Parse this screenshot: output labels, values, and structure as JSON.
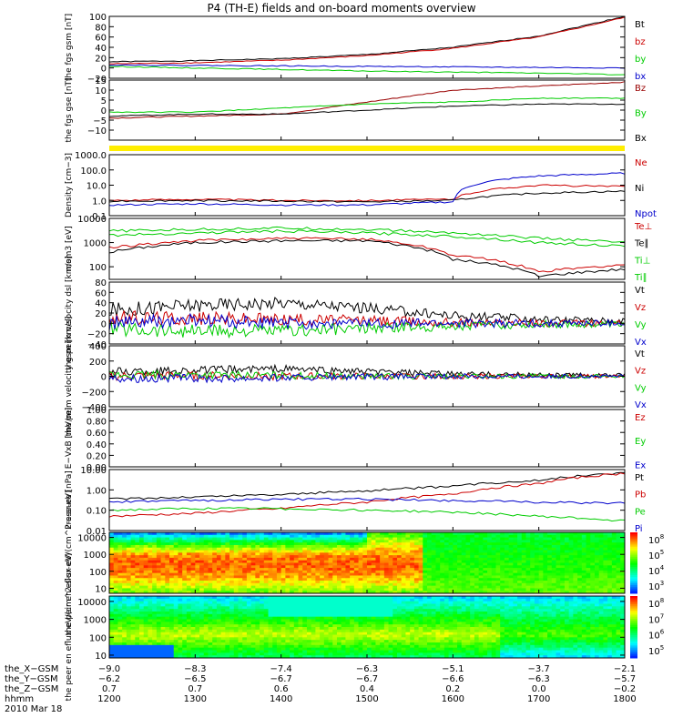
{
  "title": "P4 (TH-E) fields and on-board moments overview",
  "date": "2010 Mar 18",
  "chart_data": [
    {
      "type": "line",
      "ylabel": "the fgs gsm [nT]",
      "ylim": [
        -20,
        100
      ],
      "yticks": [
        -20,
        0,
        20,
        40,
        60,
        80,
        100
      ],
      "ytick_labels": [
        "−20",
        "0",
        "20",
        "40",
        "60",
        "80",
        "100"
      ],
      "legend": [
        "Bt",
        "bz",
        "by",
        "bx"
      ],
      "colors": [
        "#000000",
        "#cc0000",
        "#00cc00",
        "#0000cc"
      ],
      "x": [
        1200,
        1300,
        1400,
        1500,
        1600,
        1700,
        1800
      ],
      "series": [
        {
          "name": "Bt",
          "values": [
            12,
            14,
            18,
            26,
            40,
            62,
            100
          ]
        },
        {
          "name": "bz",
          "values": [
            8,
            10,
            15,
            24,
            38,
            60,
            98
          ]
        },
        {
          "name": "by",
          "values": [
            3,
            0,
            -3,
            -6,
            -8,
            -10,
            -13
          ]
        },
        {
          "name": "bx",
          "values": [
            6,
            5,
            4,
            3,
            2,
            1,
            0
          ]
        }
      ]
    },
    {
      "type": "line",
      "ylabel": "the fgs gse [nT]",
      "ylim": [
        -15,
        15
      ],
      "yticks": [
        -10,
        -5,
        0,
        5,
        10,
        15
      ],
      "ytick_labels": [
        "−10",
        "−5",
        "0",
        "5",
        "10",
        "15"
      ],
      "legend": [
        "Bz",
        "By",
        "Bx"
      ],
      "colors": [
        "#990000",
        "#00cc00",
        "#000000"
      ],
      "x": [
        1200,
        1300,
        1400,
        1500,
        1600,
        1700,
        1800
      ],
      "series": [
        {
          "name": "Bz",
          "values": [
            -4,
            -3,
            -2,
            4,
            10,
            12,
            14
          ]
        },
        {
          "name": "By",
          "values": [
            -1,
            -1,
            1,
            3,
            4,
            6,
            6
          ]
        },
        {
          "name": "Bx",
          "values": [
            -3,
            -2,
            -2,
            0,
            2,
            3,
            3
          ]
        }
      ]
    },
    {
      "type": "line",
      "ylabel": "Density [cm−3]",
      "yscale": "log",
      "ylim": [
        0.1,
        1000
      ],
      "yticks": [
        0.1,
        1,
        10,
        100,
        1000
      ],
      "ytick_labels": [
        "0.1",
        "1.0",
        "10.0",
        "100.0",
        "1000.0"
      ],
      "legend": [
        "Ne",
        "Ni",
        "Npot"
      ],
      "colors": [
        "#cc0000",
        "#000000",
        "#0000cc"
      ],
      "x": [
        1200,
        1300,
        1400,
        1500,
        1600,
        1700,
        1800
      ],
      "series": [
        {
          "name": "Ne",
          "values": [
            1.0,
            1.2,
            1.0,
            1.0,
            1.2,
            10,
            8
          ]
        },
        {
          "name": "Ni",
          "values": [
            0.9,
            1.0,
            0.9,
            0.8,
            1.0,
            3,
            4
          ]
        },
        {
          "name": "Npot",
          "values": [
            0.5,
            0.6,
            0.5,
            0.5,
            0.8,
            40,
            60
          ]
        }
      ]
    },
    {
      "type": "line",
      "ylabel": "mom3 [eV]",
      "yscale": "log",
      "ylim": [
        30,
        10000
      ],
      "yticks": [
        100,
        1000,
        10000
      ],
      "ytick_labels": [
        "100",
        "1000",
        "10000"
      ],
      "legend": [
        "Te⊥",
        "Te∥",
        "Ti⊥",
        "Ti∥"
      ],
      "colors": [
        "#cc0000",
        "#000000",
        "#00cc00",
        "#00cc00"
      ],
      "x": [
        1200,
        1300,
        1400,
        1500,
        1600,
        1700,
        1800
      ],
      "series": [
        {
          "name": "Te⊥",
          "values": [
            600,
            1200,
            1500,
            1400,
            300,
            60,
            120
          ]
        },
        {
          "name": "Te∥",
          "values": [
            400,
            1000,
            1200,
            1200,
            200,
            40,
            80
          ]
        },
        {
          "name": "Ti⊥",
          "values": [
            3000,
            3500,
            4000,
            3500,
            2500,
            1500,
            1000
          ]
        },
        {
          "name": "Ti∥",
          "values": [
            2000,
            2500,
            3000,
            2500,
            1800,
            1000,
            700
          ]
        }
      ]
    },
    {
      "type": "line",
      "ylabel": "the peim velocity dsl [km/s]",
      "ylim": [
        -40,
        80
      ],
      "yticks": [
        -40,
        -20,
        0,
        20,
        40,
        60,
        80
      ],
      "ytick_labels": [
        "−40",
        "−20",
        "0",
        "20",
        "40",
        "60",
        "80"
      ],
      "legend": [
        "Vt",
        "Vz",
        "Vy",
        "Vx"
      ],
      "colors": [
        "#000000",
        "#cc0000",
        "#00cc00",
        "#0000cc"
      ],
      "x": [
        1200,
        1300,
        1400,
        1500,
        1600,
        1700,
        1800
      ],
      "series": [
        {
          "name": "Vt",
          "values": [
            25,
            35,
            40,
            30,
            15,
            8,
            5
          ]
        },
        {
          "name": "Vz",
          "values": [
            10,
            10,
            8,
            5,
            2,
            0,
            0
          ]
        },
        {
          "name": "Vy",
          "values": [
            -10,
            -15,
            -15,
            -10,
            -5,
            -2,
            -2
          ]
        },
        {
          "name": "Vx",
          "values": [
            0,
            5,
            0,
            0,
            0,
            0,
            0
          ]
        }
      ]
    },
    {
      "type": "line",
      "ylabel": "the peim velocity gsm [km/s]",
      "ylim": [
        -400,
        400
      ],
      "yticks": [
        -400,
        -200,
        0,
        200,
        400
      ],
      "ytick_labels": [
        "−400",
        "−200",
        "0",
        "200",
        "400"
      ],
      "legend": [
        "Vt",
        "Vz",
        "Vy",
        "Vx"
      ],
      "colors": [
        "#000000",
        "#cc0000",
        "#00cc00",
        "#0000cc"
      ],
      "x": [
        1200,
        1300,
        1400,
        1500,
        1600,
        1700,
        1800
      ],
      "series": [
        {
          "name": "Vt",
          "values": [
            60,
            80,
            100,
            60,
            30,
            20,
            15
          ]
        },
        {
          "name": "Vz",
          "values": [
            0,
            10,
            0,
            0,
            0,
            0,
            0
          ]
        },
        {
          "name": "Vy",
          "values": [
            10,
            20,
            10,
            0,
            0,
            0,
            0
          ]
        },
        {
          "name": "Vx",
          "values": [
            -20,
            -30,
            -20,
            -10,
            0,
            0,
            0
          ]
        }
      ]
    },
    {
      "type": "line",
      "ylabel": "E−VxB [mV/m]",
      "ylim": [
        0,
        1
      ],
      "yticks": [
        0,
        0.2,
        0.4,
        0.6,
        0.8,
        1.0
      ],
      "ytick_labels": [
        "0.00",
        "0.20",
        "0.40",
        "0.60",
        "0.80",
        "1.00"
      ],
      "legend": [
        "Ez",
        "Ey",
        "Ex"
      ],
      "colors": [
        "#cc0000",
        "#00cc00",
        "#0000cc"
      ],
      "x": [],
      "series": []
    },
    {
      "type": "line",
      "ylabel": "Pressure [nPa]",
      "yscale": "log",
      "ylim": [
        0.01,
        10
      ],
      "yticks": [
        0.01,
        0.1,
        1,
        10
      ],
      "ytick_labels": [
        "0.01",
        "0.10",
        "1.00",
        "10.00"
      ],
      "legend": [
        "Pt",
        "Pb",
        "Pe",
        "Pi"
      ],
      "colors": [
        "#000000",
        "#cc0000",
        "#00cc00",
        "#0000cc"
      ],
      "x": [
        1200,
        1300,
        1400,
        1500,
        1600,
        1700,
        1800
      ],
      "series": [
        {
          "name": "Pt",
          "values": [
            0.35,
            0.45,
            0.6,
            0.9,
            1.5,
            3,
            7
          ]
        },
        {
          "name": "Pb",
          "values": [
            0.05,
            0.07,
            0.12,
            0.25,
            0.6,
            2,
            6.5
          ]
        },
        {
          "name": "Pe",
          "values": [
            0.1,
            0.12,
            0.12,
            0.1,
            0.08,
            0.05,
            0.03
          ]
        },
        {
          "name": "Pi",
          "values": [
            0.25,
            0.3,
            0.35,
            0.35,
            0.3,
            0.25,
            0.22
          ]
        }
      ]
    },
    {
      "type": "heatmap",
      "ylabel": "the peir en eflux eV/(cm^2-s-sr-eV)",
      "yscale": "log",
      "ylim": [
        5,
        20000
      ],
      "yticks": [
        10,
        100,
        1000,
        10000
      ],
      "ytick_labels": [
        "10",
        "100",
        "1000",
        "10000"
      ],
      "colorbar_labels": [
        "10^8",
        "10^5",
        "10^4",
        "10^3"
      ],
      "colorbar_exponents": [
        "8",
        "5",
        "4",
        "3"
      ]
    },
    {
      "type": "heatmap",
      "ylabel": "the peer en eflux eV/(cm^2-s-sr-eV)",
      "yscale": "log",
      "ylim": [
        7,
        20000
      ],
      "yticks": [
        10,
        100,
        1000,
        10000
      ],
      "ytick_labels": [
        "10",
        "100",
        "1000",
        "10000"
      ],
      "colorbar_labels": [
        "10^8",
        "10^7",
        "10^6",
        "10^5"
      ],
      "colorbar_exponents": [
        "8",
        "7",
        "6",
        "5"
      ]
    }
  ],
  "xaxis": {
    "rows": [
      {
        "label": "the_X−GSM",
        "values": [
          "−9.0",
          "−8.3",
          "−7.4",
          "−6.3",
          "−5.1",
          "−3.7",
          "−2.1"
        ]
      },
      {
        "label": "the_Y−GSM",
        "values": [
          "−6.2",
          "−6.5",
          "−6.7",
          "−6.7",
          "−6.6",
          "−6.3",
          "−5.7"
        ]
      },
      {
        "label": "the_Z−GSM",
        "values": [
          "0.7",
          "0.7",
          "0.6",
          "0.4",
          "0.2",
          "0.0",
          "−0.2"
        ]
      },
      {
        "label": "hhmm",
        "values": [
          "1200",
          "1300",
          "1400",
          "1500",
          "1600",
          "1700",
          "1800"
        ]
      }
    ]
  },
  "colors": {
    "bar_yellow": "#ffee00"
  }
}
